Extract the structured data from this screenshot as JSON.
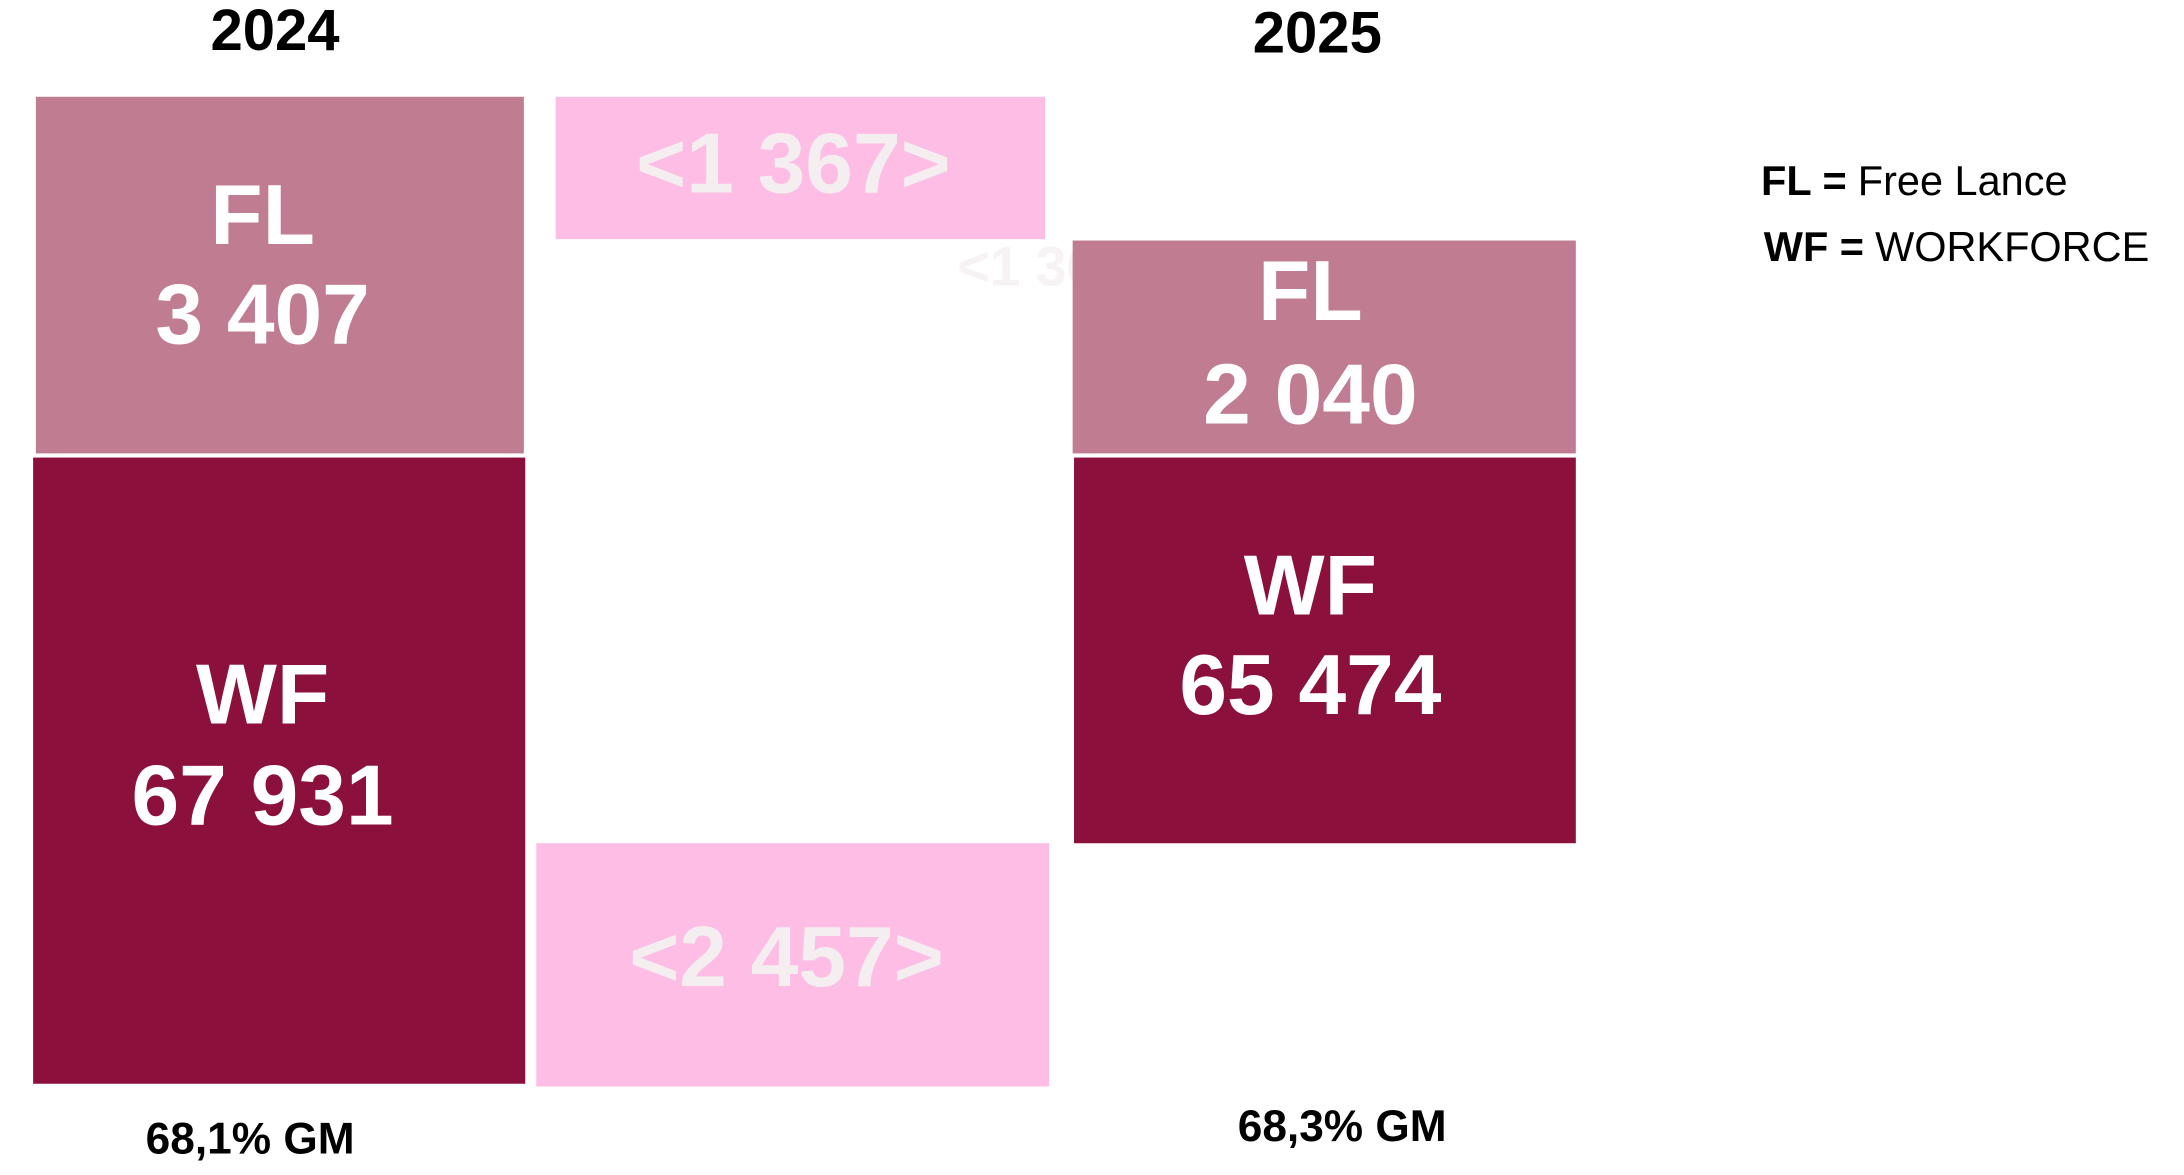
{
  "years": {
    "left": "2024",
    "right": "2025"
  },
  "left": {
    "fl": {
      "label": "FL",
      "value": "3 407"
    },
    "wf": {
      "label": "WF",
      "value": "67 931"
    },
    "margin": "68,1% GM"
  },
  "changes": {
    "fl": "<1 367>",
    "wf": "<2 457>"
  },
  "right": {
    "fl": {
      "label": "FL",
      "value": "2 040"
    },
    "wf": {
      "label": "WF",
      "value": "65 474"
    },
    "margin": "68,3% GM"
  },
  "legend": [
    {
      "term": "FL =",
      "definition": "Free Lance"
    },
    {
      "term": "WF =",
      "definition": "WORKFORCE"
    }
  ]
}
